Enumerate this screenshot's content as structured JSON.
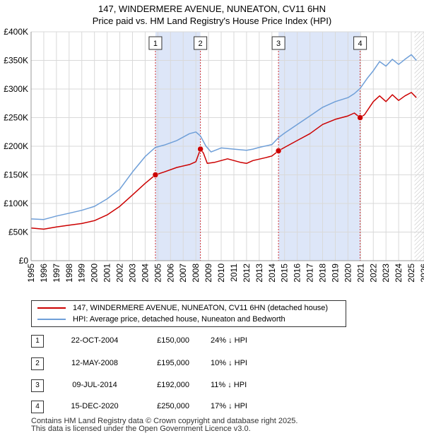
{
  "title_line1": "147, WINDERMERE AVENUE, NUNEATON, CV11 6HN",
  "title_line2": "Price paid vs. HM Land Registry's House Price Index (HPI)",
  "colors": {
    "property": "#cc0000",
    "hpi": "#6f9fd8",
    "shade": "#dde6f8",
    "grid": "#d9d9d9"
  },
  "chart_data": {
    "type": "line",
    "title": "Price paid vs. HM Land Registry's House Price Index (HPI)",
    "xlabel": "",
    "ylabel": "",
    "xlim": [
      1995,
      2026
    ],
    "ylim": [
      0,
      400000
    ],
    "x_ticks": [
      "1995",
      "1996",
      "1997",
      "1998",
      "1999",
      "2000",
      "2001",
      "2002",
      "2003",
      "2004",
      "2005",
      "2006",
      "2007",
      "2008",
      "2009",
      "2010",
      "2011",
      "2012",
      "2013",
      "2014",
      "2015",
      "2016",
      "2017",
      "2018",
      "2019",
      "2020",
      "2021",
      "2022",
      "2023",
      "2024",
      "2025",
      "2026"
    ],
    "y_ticks": [
      {
        "value": 0,
        "label": "£0"
      },
      {
        "value": 50000,
        "label": "£50K"
      },
      {
        "value": 100000,
        "label": "£100K"
      },
      {
        "value": 150000,
        "label": "£150K"
      },
      {
        "value": 200000,
        "label": "£200K"
      },
      {
        "value": 250000,
        "label": "£250K"
      },
      {
        "value": 300000,
        "label": "£300K"
      },
      {
        "value": 350000,
        "label": "£350K"
      },
      {
        "value": 400000,
        "label": "£400K"
      }
    ],
    "series": [
      {
        "name": "147, WINDERMERE AVENUE, NUNEATON, CV11 6HN (detached house)",
        "color": "#cc0000",
        "x": [
          1995.0,
          1996.0,
          1997.0,
          1998.0,
          1999.0,
          2000.0,
          2001.0,
          2002.0,
          2003.0,
          2004.0,
          2004.81,
          2005.5,
          2006.5,
          2007.5,
          2008.0,
          2008.36,
          2008.6,
          2008.9,
          2009.5,
          2010.5,
          2011.5,
          2012.0,
          2012.5,
          2013.5,
          2014.0,
          2014.52,
          2015.0,
          2016.0,
          2017.0,
          2018.0,
          2019.0,
          2020.0,
          2020.5,
          2020.96,
          2021.3,
          2022.0,
          2022.5,
          2023.0,
          2023.5,
          2024.0,
          2024.5,
          2025.0,
          2025.4
        ],
        "y": [
          57000,
          55000,
          59000,
          62000,
          65000,
          70000,
          80000,
          95000,
          115000,
          135000,
          150000,
          155000,
          163000,
          168000,
          173000,
          195000,
          188000,
          170000,
          172000,
          178000,
          172000,
          170000,
          175000,
          180000,
          183000,
          192000,
          198000,
          210000,
          222000,
          238000,
          247000,
          253000,
          258000,
          250000,
          255000,
          278000,
          288000,
          278000,
          290000,
          280000,
          288000,
          294000,
          285000
        ]
      },
      {
        "name": "HPI: Average price, detached house, Nuneaton and Bedworth",
        "color": "#6f9fd8",
        "x": [
          1995.0,
          1996.0,
          1997.0,
          1998.0,
          1999.0,
          2000.0,
          2001.0,
          2002.0,
          2003.0,
          2004.0,
          2004.81,
          2005.5,
          2006.5,
          2007.5,
          2008.0,
          2008.36,
          2008.8,
          2009.2,
          2010.0,
          2011.0,
          2012.0,
          2012.5,
          2013.0,
          2014.0,
          2014.52,
          2015.0,
          2016.0,
          2017.0,
          2018.0,
          2019.0,
          2020.0,
          2020.5,
          2020.96,
          2021.5,
          2022.0,
          2022.5,
          2023.0,
          2023.5,
          2024.0,
          2024.5,
          2025.0,
          2025.4
        ],
        "y": [
          73000,
          72000,
          78000,
          83000,
          88000,
          95000,
          108000,
          125000,
          155000,
          182000,
          198000,
          202000,
          210000,
          222000,
          225000,
          218000,
          200000,
          190000,
          197000,
          195000,
          193000,
          195000,
          198000,
          203000,
          215000,
          223000,
          238000,
          253000,
          268000,
          278000,
          285000,
          292000,
          301000,
          318000,
          332000,
          348000,
          340000,
          352000,
          343000,
          352000,
          360000,
          350000
        ]
      }
    ],
    "sales": [
      {
        "label": "1",
        "x": 2004.81,
        "date": "22-OCT-2004",
        "price": 150000
      },
      {
        "label": "2",
        "x": 2008.36,
        "date": "12-MAY-2008",
        "price": 195000
      },
      {
        "label": "3",
        "x": 2014.52,
        "date": "09-JUL-2014",
        "price": 192000
      },
      {
        "label": "4",
        "x": 2020.96,
        "date": "15-DEC-2020",
        "price": 250000
      }
    ],
    "shaded_ranges": [
      [
        2004.81,
        2008.36
      ],
      [
        2014.52,
        2020.96
      ]
    ],
    "forecast_start": 2025.25
  },
  "legend": {
    "property": "147, WINDERMERE AVENUE, NUNEATON, CV11 6HN (detached house)",
    "hpi": "HPI: Average price, detached house, Nuneaton and Bedworth"
  },
  "table": [
    {
      "num": "1",
      "date": "22-OCT-2004",
      "price": "£150,000",
      "hpi": "24% ↓ HPI"
    },
    {
      "num": "2",
      "date": "12-MAY-2008",
      "price": "£195,000",
      "hpi": "10% ↓ HPI"
    },
    {
      "num": "3",
      "date": "09-JUL-2014",
      "price": "£192,000",
      "hpi": "11% ↓ HPI"
    },
    {
      "num": "4",
      "date": "15-DEC-2020",
      "price": "£250,000",
      "hpi": "17% ↓ HPI"
    }
  ],
  "footer": {
    "line1": "Contains HM Land Registry data © Crown copyright and database right 2025.",
    "line2": "This data is licensed under the Open Government Licence v3.0."
  }
}
